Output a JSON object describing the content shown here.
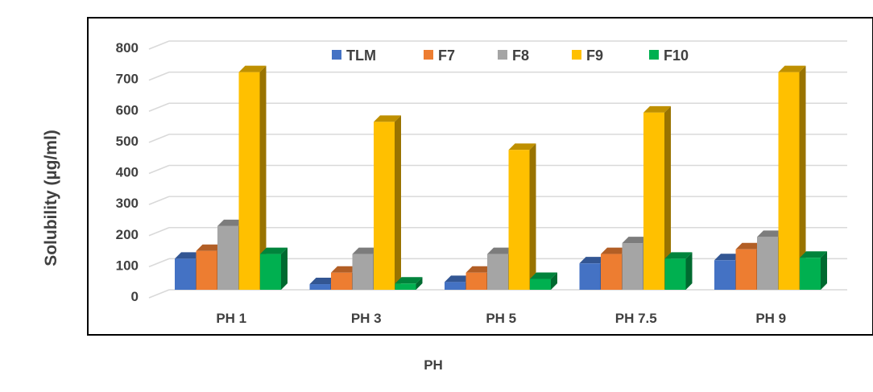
{
  "chart_data": {
    "type": "bar",
    "title": "",
    "xlabel": "PH",
    "ylabel": "Solubility (µg/ml)",
    "ylim": [
      0,
      800
    ],
    "yticks": [
      0,
      100,
      200,
      300,
      400,
      500,
      600,
      700,
      800
    ],
    "grid": true,
    "legend_position": "top",
    "categories": [
      "PH 1",
      "PH 3",
      "PH 5",
      "PH 7.5",
      "PH 9"
    ],
    "series": [
      {
        "name": "TLM",
        "color": "#4472C4",
        "values": [
          100,
          18,
          25,
          85,
          95
        ]
      },
      {
        "name": "F7",
        "color": "#ED7D31",
        "values": [
          125,
          55,
          55,
          115,
          130
        ]
      },
      {
        "name": "F8",
        "color": "#A5A5A5",
        "values": [
          205,
          115,
          115,
          150,
          170
        ]
      },
      {
        "name": "F9",
        "color": "#FFC000",
        "values": [
          700,
          540,
          450,
          570,
          700
        ]
      },
      {
        "name": "F10",
        "color": "#00B050",
        "values": [
          115,
          20,
          35,
          100,
          103
        ]
      }
    ]
  }
}
